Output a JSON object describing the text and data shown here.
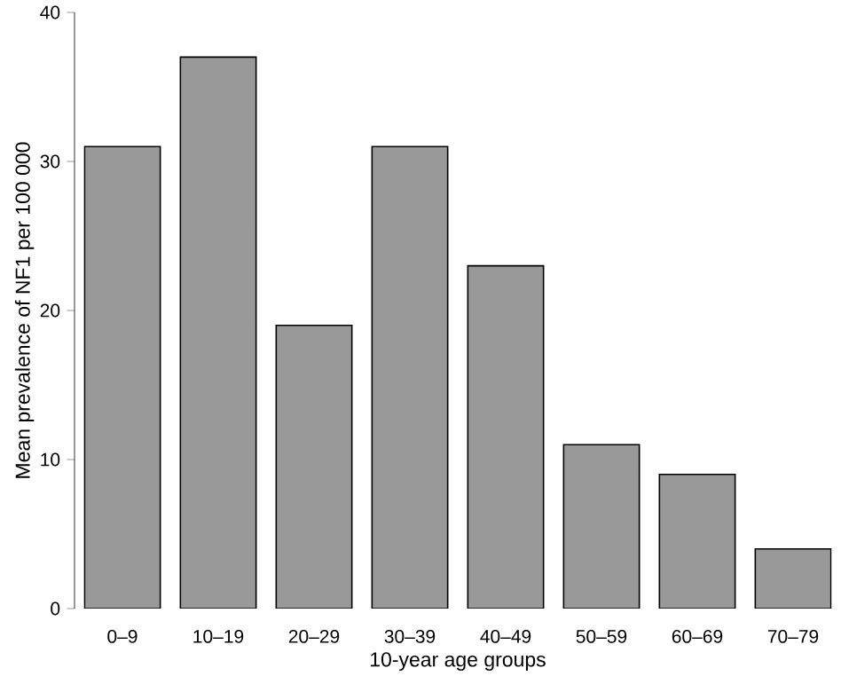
{
  "chart_data": {
    "type": "bar",
    "xlabel": "10-year age groups",
    "ylabel": "Mean prevalence of NF1 per 100 000",
    "categories": [
      "0–9",
      "10–19",
      "20–29",
      "30–39",
      "40–49",
      "50–59",
      "60–69",
      "70–79"
    ],
    "values": [
      31,
      37,
      19,
      31,
      23,
      11,
      9,
      4
    ],
    "color": "#999999",
    "ylim": [
      0,
      40
    ],
    "yticks": [
      0,
      10,
      20,
      30,
      40
    ]
  }
}
